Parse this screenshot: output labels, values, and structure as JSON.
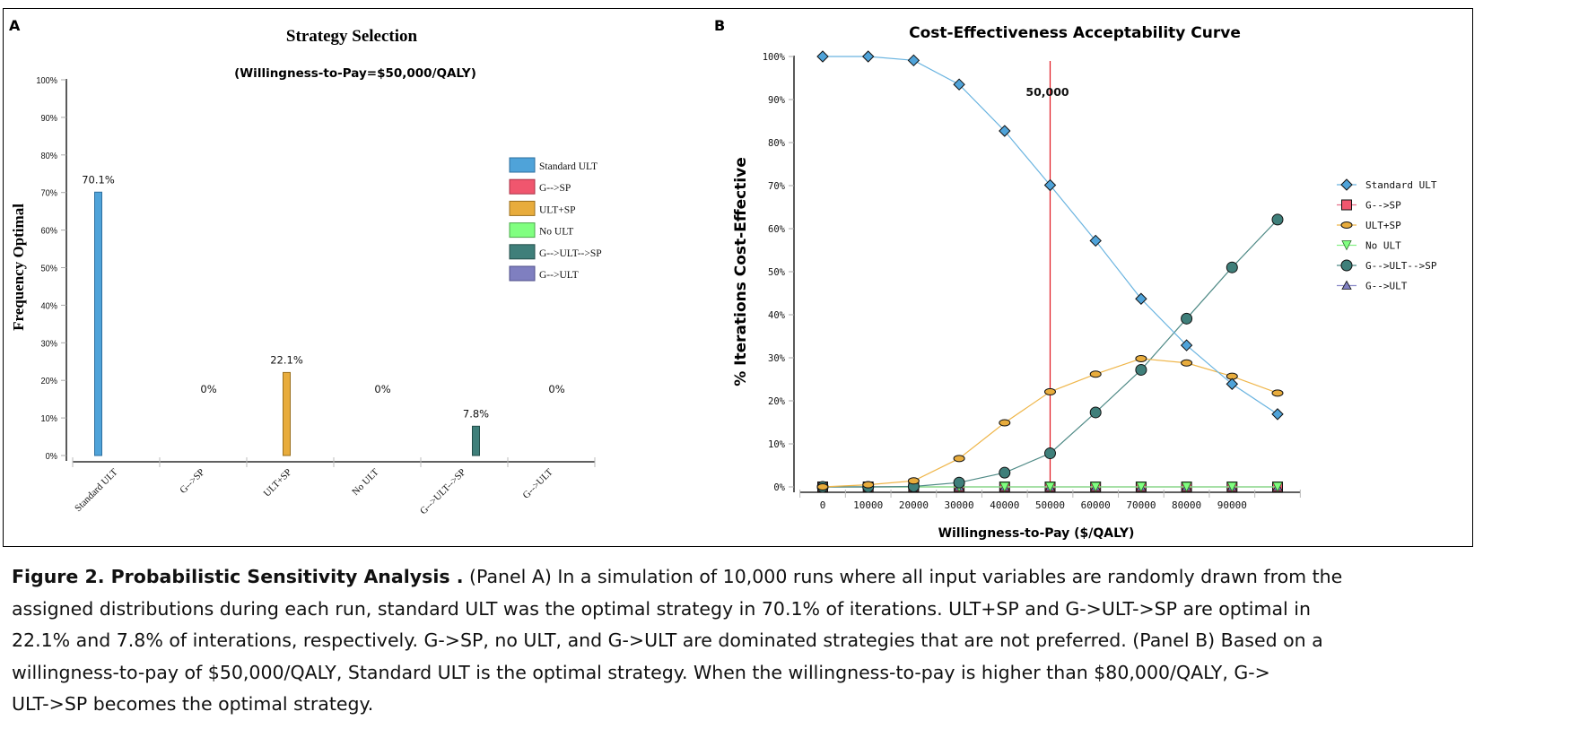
{
  "figure": {
    "caption_title": "Figure 2. Probabilistic Sensitivity Analysis .",
    "caption_lines": [
      " (Panel A) In a simulation of 10,000 runs where all input variables are randomly drawn from the",
      "assigned distributions during each run, standard ULT was the optimal strategy in 70.1% of iterations. ULT+SP and G->ULT->SP are optimal in",
      "22.1% and 7.8% of interations, respectively. G->SP, no ULT, and G->ULT are dominated strategies that are not preferred. (Panel B) Based on a",
      "willingness-to-pay of $50,000/QALY, Standard ULT is the optimal strategy. When the willingness-to-pay is higher than $80,000/QALY, G->",
      "ULT->SP becomes the optimal strategy."
    ]
  },
  "colors": {
    "standard_ult": "#4fa3d9",
    "g_sp": "#f0566e",
    "ult_sp": "#e8ac3c",
    "no_ult": "#80ff80",
    "g_ult_sp": "#3f7f7a",
    "g_ult": "#7f7fc0",
    "threshold_line": "#e0141e"
  },
  "chart_data": [
    {
      "panel_label": "A",
      "type": "bar",
      "title": "Strategy Selection",
      "subtitle": "(Willingness-to-Pay=$50,000/QALY)",
      "xlabel": "",
      "ylabel": "Frequency Optimal",
      "ylim": [
        0,
        100
      ],
      "yticks": [
        "0%",
        "10%",
        "20%",
        "30%",
        "40%",
        "50%",
        "60%",
        "70%",
        "80%",
        "90%",
        "100%"
      ],
      "categories": [
        "Standard ULT",
        "G-->SP",
        "ULT+SP",
        "No ULT",
        "G-->ULT-->SP",
        "G-->ULT"
      ],
      "values": [
        70.1,
        0,
        22.1,
        0,
        7.8,
        0
      ],
      "data_labels": [
        "70.1%",
        "0%",
        "22.1%",
        "0%",
        "7.8%",
        "0%"
      ],
      "legend": [
        "Standard ULT",
        "G-->SP",
        "ULT+SP",
        "No ULT",
        "G-->ULT-->SP",
        "G-->ULT"
      ],
      "legend_position": "right",
      "grid": false
    },
    {
      "panel_label": "B",
      "type": "line",
      "title": "Cost-Effectiveness Acceptability Curve",
      "xlabel": "Willingness-to-Pay ($/QALY)",
      "ylabel": "% Iterations Cost-Effective",
      "ylim": [
        0,
        100
      ],
      "xlim": [
        0,
        100000
      ],
      "yticks": [
        "0%",
        "10%",
        "20%",
        "30%",
        "40%",
        "50%",
        "60%",
        "70%",
        "80%",
        "90%",
        "100%"
      ],
      "xtick_labels": [
        "0",
        "10000",
        "20000",
        "30000",
        "40000",
        "50000",
        "60000",
        "70000",
        "80000",
        "90000"
      ],
      "x": [
        0,
        10000,
        20000,
        30000,
        40000,
        50000,
        60000,
        70000,
        80000,
        90000,
        100000
      ],
      "series": [
        {
          "name": "Standard ULT",
          "marker": "diamond",
          "values": [
            100,
            100,
            99.1,
            93.5,
            82.7,
            70.1,
            57.2,
            43.7,
            32.9,
            23.9,
            16.9
          ]
        },
        {
          "name": "G-->SP",
          "marker": "square",
          "values": [
            0,
            0,
            0,
            0,
            0,
            0,
            0,
            0,
            0,
            0,
            0
          ]
        },
        {
          "name": "ULT+SP",
          "marker": "ellipse",
          "values": [
            0,
            0.5,
            1.4,
            6.6,
            14.9,
            22.1,
            26.2,
            29.8,
            28.8,
            25.7,
            21.8
          ]
        },
        {
          "name": "No ULT",
          "marker": "triangle-down",
          "values": [
            0,
            0,
            0,
            0,
            0,
            0,
            0,
            0,
            0,
            0,
            0
          ]
        },
        {
          "name": "G-->ULT-->SP",
          "marker": "circle",
          "values": [
            0,
            0,
            0.1,
            1.0,
            3.3,
            7.8,
            17.3,
            27.2,
            39.1,
            51.0,
            62.1
          ]
        },
        {
          "name": "G-->ULT",
          "marker": "triangle-up",
          "values": [
            0,
            0,
            0,
            0,
            0,
            0,
            0,
            0,
            0,
            0,
            0
          ]
        }
      ],
      "annotations": [
        {
          "type": "vertical-line",
          "x": 50000,
          "label": "50,000"
        }
      ],
      "legend_position": "right",
      "grid": false
    }
  ]
}
